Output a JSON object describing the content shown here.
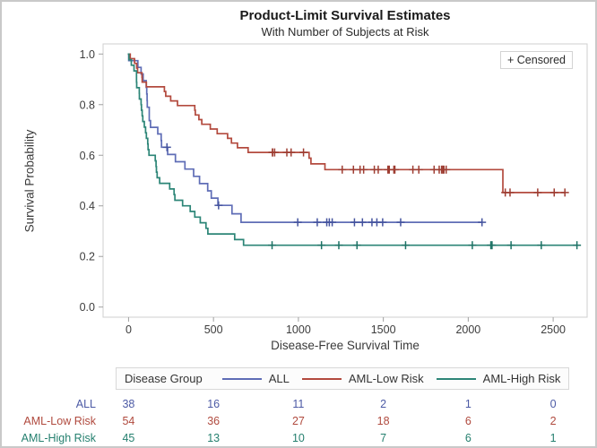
{
  "figure": {
    "censored_box_label": "+ Censored"
  },
  "chart_data": {
    "type": "line",
    "chart_style": "kaplan-meier-step",
    "title": "Product-Limit Survival Estimates",
    "subtitle": "With Number of Subjects at Risk",
    "xlabel": "Disease-Free Survival Time",
    "ylabel": "Survival Probability",
    "legend_title": "Disease Group",
    "legend_position": "bottom",
    "grid": false,
    "xlim": [
      -150,
      2700
    ],
    "ylim": [
      -0.04,
      1.04
    ],
    "xticks": [
      0,
      500,
      1000,
      1500,
      2000,
      2500
    ],
    "yticks": [
      0.0,
      0.2,
      0.4,
      0.6,
      0.8,
      1.0
    ],
    "axis_color": "#cfcfcf",
    "tick_color": "#a0a0a0",
    "tick_label_color": "#3d3d3d",
    "series": [
      {
        "name": "ALL",
        "color": "#5f6db6",
        "marker_color": "#44539e",
        "end_time": 2081,
        "steps": [
          [
            0,
            1
          ],
          [
            1,
            0.9737
          ],
          [
            55,
            0.9474
          ],
          [
            74,
            0.9211
          ],
          [
            86,
            0.8947
          ],
          [
            104,
            0.8684
          ],
          [
            107,
            0.8421
          ],
          [
            109,
            0.8158
          ],
          [
            110,
            0.7895
          ],
          [
            122,
            0.7368
          ],
          [
            129,
            0.7105
          ],
          [
            172,
            0.6842
          ],
          [
            192,
            0.6579
          ],
          [
            194,
            0.6316
          ],
          [
            230,
            0.6029
          ],
          [
            276,
            0.5742
          ],
          [
            332,
            0.5455
          ],
          [
            383,
            0.5168
          ],
          [
            418,
            0.4881
          ],
          [
            466,
            0.4594
          ],
          [
            487,
            0.4307
          ],
          [
            526,
            0.402
          ],
          [
            609,
            0.3685
          ],
          [
            662,
            0.335
          ]
        ],
        "censored": [
          [
            226,
            0.6316
          ],
          [
            530,
            0.402
          ],
          [
            996,
            0.335
          ],
          [
            1111,
            0.335
          ],
          [
            1167,
            0.335
          ],
          [
            1182,
            0.335
          ],
          [
            1199,
            0.335
          ],
          [
            1330,
            0.335
          ],
          [
            1377,
            0.335
          ],
          [
            1433,
            0.335
          ],
          [
            1462,
            0.335
          ],
          [
            1496,
            0.335
          ],
          [
            1602,
            0.335
          ],
          [
            2081,
            0.335
          ]
        ]
      },
      {
        "name": "AML-Low Risk",
        "color": "#b34a3e",
        "marker_color": "#9e3d32",
        "end_time": 2569,
        "steps": [
          [
            0,
            1
          ],
          [
            10,
            0.9815
          ],
          [
            35,
            0.963
          ],
          [
            48,
            0.9444
          ],
          [
            53,
            0.9259
          ],
          [
            79,
            0.9074
          ],
          [
            80,
            0.8889
          ],
          [
            105,
            0.8704
          ],
          [
            211,
            0.8519
          ],
          [
            219,
            0.8333
          ],
          [
            248,
            0.8148
          ],
          [
            288,
            0.7963
          ],
          [
            390,
            0.7778
          ],
          [
            393,
            0.7593
          ],
          [
            414,
            0.7407
          ],
          [
            431,
            0.7222
          ],
          [
            481,
            0.7037
          ],
          [
            522,
            0.6852
          ],
          [
            583,
            0.6667
          ],
          [
            606,
            0.6481
          ],
          [
            641,
            0.6296
          ],
          [
            704,
            0.6111
          ],
          [
            1063,
            0.5885
          ],
          [
            1074,
            0.5659
          ],
          [
            1156,
            0.5432
          ],
          [
            2204,
            0.4527
          ]
        ],
        "censored": [
          [
            847,
            0.6111
          ],
          [
            848,
            0.6111
          ],
          [
            860,
            0.6111
          ],
          [
            932,
            0.6111
          ],
          [
            957,
            0.6111
          ],
          [
            1030,
            0.6111
          ],
          [
            1258,
            0.5432
          ],
          [
            1324,
            0.5432
          ],
          [
            1363,
            0.5432
          ],
          [
            1384,
            0.5432
          ],
          [
            1447,
            0.5432
          ],
          [
            1470,
            0.5432
          ],
          [
            1527,
            0.5432
          ],
          [
            1535,
            0.5432
          ],
          [
            1562,
            0.5432
          ],
          [
            1568,
            0.5432
          ],
          [
            1674,
            0.5432
          ],
          [
            1709,
            0.5432
          ],
          [
            1799,
            0.5432
          ],
          [
            1829,
            0.5432
          ],
          [
            1843,
            0.5432
          ],
          [
            1850,
            0.5432
          ],
          [
            1857,
            0.5432
          ],
          [
            1870,
            0.5432
          ],
          [
            2218,
            0.4527
          ],
          [
            2246,
            0.4527
          ],
          [
            2409,
            0.4527
          ],
          [
            2506,
            0.4527
          ],
          [
            2569,
            0.4527
          ]
        ]
      },
      {
        "name": "AML-High Risk",
        "color": "#2c8577",
        "marker_color": "#1c7265",
        "end_time": 2640,
        "steps": [
          [
            0,
            1
          ],
          [
            2,
            0.9778
          ],
          [
            16,
            0.9556
          ],
          [
            32,
            0.9333
          ],
          [
            47,
            0.8889
          ],
          [
            48,
            0.8667
          ],
          [
            63,
            0.8444
          ],
          [
            64,
            0.8222
          ],
          [
            74,
            0.8
          ],
          [
            76,
            0.7778
          ],
          [
            80,
            0.7556
          ],
          [
            84,
            0.7333
          ],
          [
            93,
            0.7111
          ],
          [
            100,
            0.6889
          ],
          [
            105,
            0.6667
          ],
          [
            113,
            0.6444
          ],
          [
            115,
            0.6222
          ],
          [
            120,
            0.6
          ],
          [
            157,
            0.5778
          ],
          [
            162,
            0.5556
          ],
          [
            164,
            0.5333
          ],
          [
            168,
            0.5111
          ],
          [
            183,
            0.4889
          ],
          [
            242,
            0.4667
          ],
          [
            268,
            0.4444
          ],
          [
            273,
            0.4222
          ],
          [
            318,
            0.4
          ],
          [
            363,
            0.3778
          ],
          [
            390,
            0.3556
          ],
          [
            422,
            0.3333
          ],
          [
            456,
            0.3111
          ],
          [
            467,
            0.2889
          ],
          [
            625,
            0.2667
          ],
          [
            677,
            0.2444
          ]
        ],
        "censored": [
          [
            845,
            0.2444
          ],
          [
            1136,
            0.2444
          ],
          [
            1238,
            0.2444
          ],
          [
            1345,
            0.2444
          ],
          [
            1631,
            0.2444
          ],
          [
            2024,
            0.2444
          ],
          [
            2133,
            0.2444
          ],
          [
            2140,
            0.2444
          ],
          [
            2252,
            0.2444
          ],
          [
            2430,
            0.2444
          ],
          [
            2640,
            0.2444
          ]
        ]
      }
    ]
  },
  "at_risk_table": {
    "rows": [
      {
        "label": "ALL",
        "color": "#4c5aa5",
        "values": [
          "38",
          "16",
          "11",
          "2",
          "1",
          "0"
        ]
      },
      {
        "label": "AML-Low Risk",
        "color": "#b04a3e",
        "values": [
          "54",
          "36",
          "27",
          "18",
          "6",
          "2"
        ]
      },
      {
        "label": "AML-High Risk",
        "color": "#25806f",
        "values": [
          "45",
          "13",
          "10",
          "7",
          "6",
          "1"
        ]
      }
    ]
  }
}
